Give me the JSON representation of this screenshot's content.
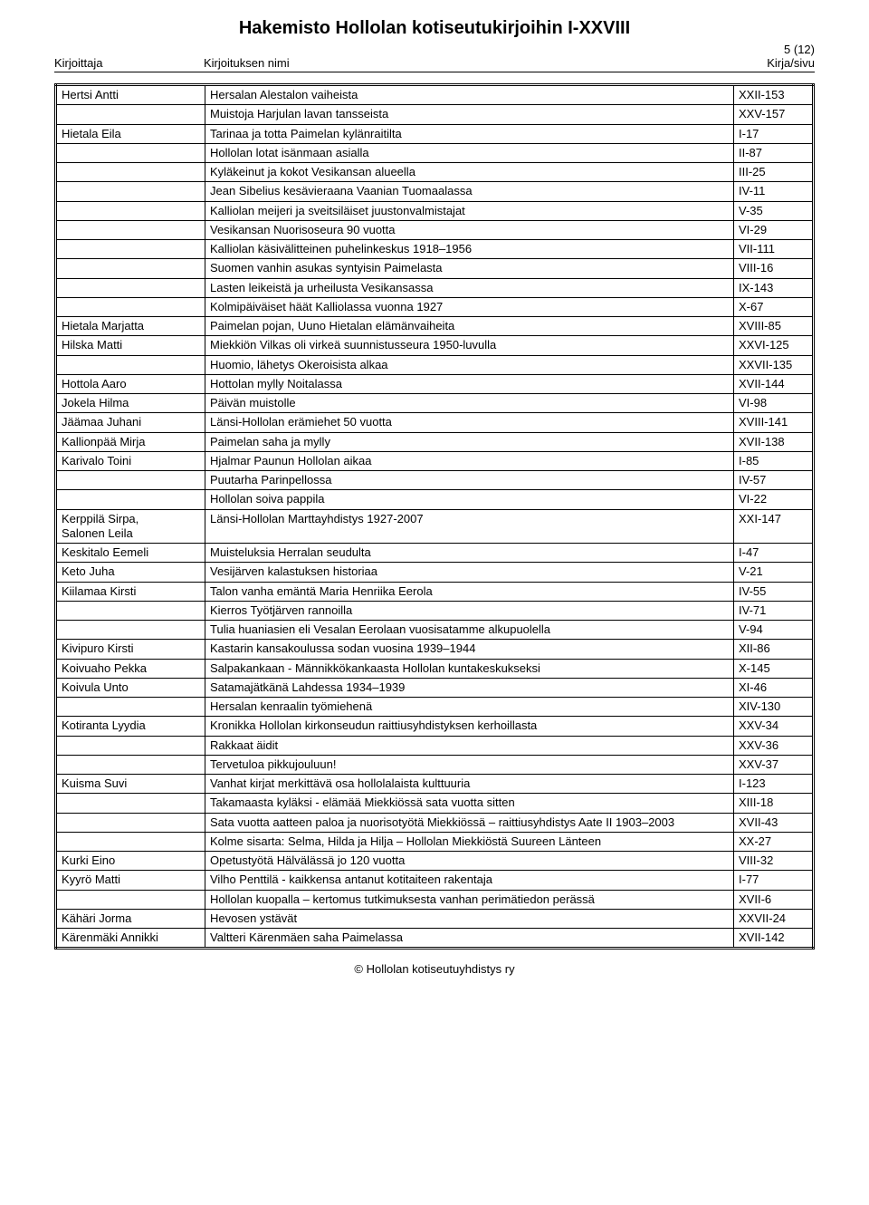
{
  "title": "Hakemisto Hollolan kotiseutukirjoihin I-XXVIII",
  "page_num": "5 (12)",
  "headers": {
    "c1": "Kirjoittaja",
    "c2": "Kirjoituksen nimi",
    "c3": "Kirja/sivu"
  },
  "footer": "© Hollolan kotiseutuyhdistys ry",
  "rows": [
    [
      "Hertsi Antti",
      "Hersalan Alestalon vaiheista",
      "XXII-153"
    ],
    [
      "",
      "Muistoja Harjulan lavan tansseista",
      "XXV-157"
    ],
    [
      "Hietala Eila",
      "Tarinaa ja totta Paimelan kylänraitilta",
      "I-17"
    ],
    [
      "",
      "Hollolan lotat isänmaan asialla",
      "II-87"
    ],
    [
      "",
      "Kyläkeinut ja kokot Vesikansan alueella",
      "III-25"
    ],
    [
      "",
      "Jean Sibelius kesävieraana Vaanian Tuomaalassa",
      "IV-11"
    ],
    [
      "",
      "Kalliolan meijeri ja sveitsiläiset juustonvalmistajat",
      "V-35"
    ],
    [
      "",
      "Vesikansan Nuorisoseura 90 vuotta",
      "VI-29"
    ],
    [
      "",
      "Kalliolan käsivälitteinen puhelinkeskus 1918–1956",
      "VII-111"
    ],
    [
      "",
      "Suomen vanhin asukas syntyisin Paimelasta",
      "VIII-16"
    ],
    [
      "",
      "Lasten leikeistä ja urheilusta Vesikansassa",
      "IX-143"
    ],
    [
      "",
      "Kolmipäiväiset häät Kalliolassa vuonna 1927",
      "X-67"
    ],
    [
      "Hietala Marjatta",
      "Paimelan pojan, Uuno Hietalan elämänvaiheita",
      "XVIII-85"
    ],
    [
      "Hilska Matti",
      "Miekkiön Vilkas oli virkeä suunnistusseura 1950-luvulla",
      "XXVI-125"
    ],
    [
      "",
      "Huomio, lähetys Okeroisista alkaa",
      "XXVII-135"
    ],
    [
      "Hottola Aaro",
      "Hottolan mylly Noitalassa",
      "XVII-144"
    ],
    [
      "Jokela Hilma",
      "Päivän muistolle",
      "VI-98"
    ],
    [
      "Jäämaa Juhani",
      "Länsi-Hollolan erämiehet 50 vuotta",
      "XVIII-141"
    ],
    [
      "Kallionpää Mirja",
      "Paimelan saha ja mylly",
      "XVII-138"
    ],
    [
      "Karivalo Toini",
      "Hjalmar Paunun Hollolan aikaa",
      "I-85"
    ],
    [
      "",
      "Puutarha Parinpellossa",
      "IV-57"
    ],
    [
      "",
      "Hollolan soiva pappila",
      "VI-22"
    ],
    [
      "Kerppilä Sirpa,\nSalonen Leila",
      "Länsi-Hollolan Marttayhdistys 1927-2007",
      "XXI-147"
    ],
    [
      "Keskitalo Eemeli",
      "Muisteluksia Herralan seudulta",
      "I-47"
    ],
    [
      "Keto Juha",
      "Vesijärven kalastuksen historiaa",
      "V-21"
    ],
    [
      "Kiilamaa Kirsti",
      "Talon vanha emäntä Maria Henriika Eerola",
      "IV-55"
    ],
    [
      "",
      "Kierros Työtjärven rannoilla",
      "IV-71"
    ],
    [
      "",
      "Tulia huaniasien eli Vesalan Eerolaan vuosisatamme alkupuolella",
      "V-94"
    ],
    [
      "Kivipuro Kirsti",
      "Kastarin kansakoulussa sodan vuosina 1939–1944",
      "XII-86"
    ],
    [
      "Koivuaho Pekka",
      "Salpakankaan - Männikkökankaasta Hollolan kuntakeskukseksi",
      "X-145"
    ],
    [
      "Koivula Unto",
      "Satamajätkänä Lahdessa 1934–1939",
      "XI-46"
    ],
    [
      "",
      "Hersalan kenraalin työmiehenä",
      "XIV-130"
    ],
    [
      "Kotiranta Lyydia",
      "Kronikka Hollolan kirkonseudun raittiusyhdistyksen kerhoillasta",
      "XXV-34"
    ],
    [
      "",
      "Rakkaat äidit",
      "XXV-36"
    ],
    [
      "",
      "Tervetuloa pikkujouluun!",
      "XXV-37"
    ],
    [
      "Kuisma Suvi",
      "Vanhat kirjat merkittävä osa hollolalaista kulttuuria",
      "I-123"
    ],
    [
      "",
      "Takamaasta kyläksi - elämää Miekkiössä sata vuotta sitten",
      "XIII-18"
    ],
    [
      "",
      "Sata vuotta aatteen paloa ja nuorisotyötä Miekkiössä – raittiusyhdistys Aate II 1903–2003",
      "XVII-43"
    ],
    [
      "",
      "Kolme sisarta: Selma, Hilda ja Hilja – Hollolan Miekkiöstä Suureen Länteen",
      "XX-27"
    ],
    [
      "Kurki Eino",
      "Opetustyötä Hälvälässä jo 120 vuotta",
      "VIII-32"
    ],
    [
      "Kyyrö Matti",
      "Vilho Penttilä - kaikkensa antanut kotitaiteen rakentaja",
      "I-77"
    ],
    [
      "",
      "Hollolan kuopalla – kertomus tutkimuksesta vanhan perimätiedon perässä",
      "XVII-6"
    ],
    [
      "Kähäri Jorma",
      "Hevosen ystävät",
      "XXVII-24"
    ],
    [
      "Kärenmäki Annikki",
      "Valtteri Kärenmäen saha Paimelassa",
      "XVII-142"
    ]
  ]
}
